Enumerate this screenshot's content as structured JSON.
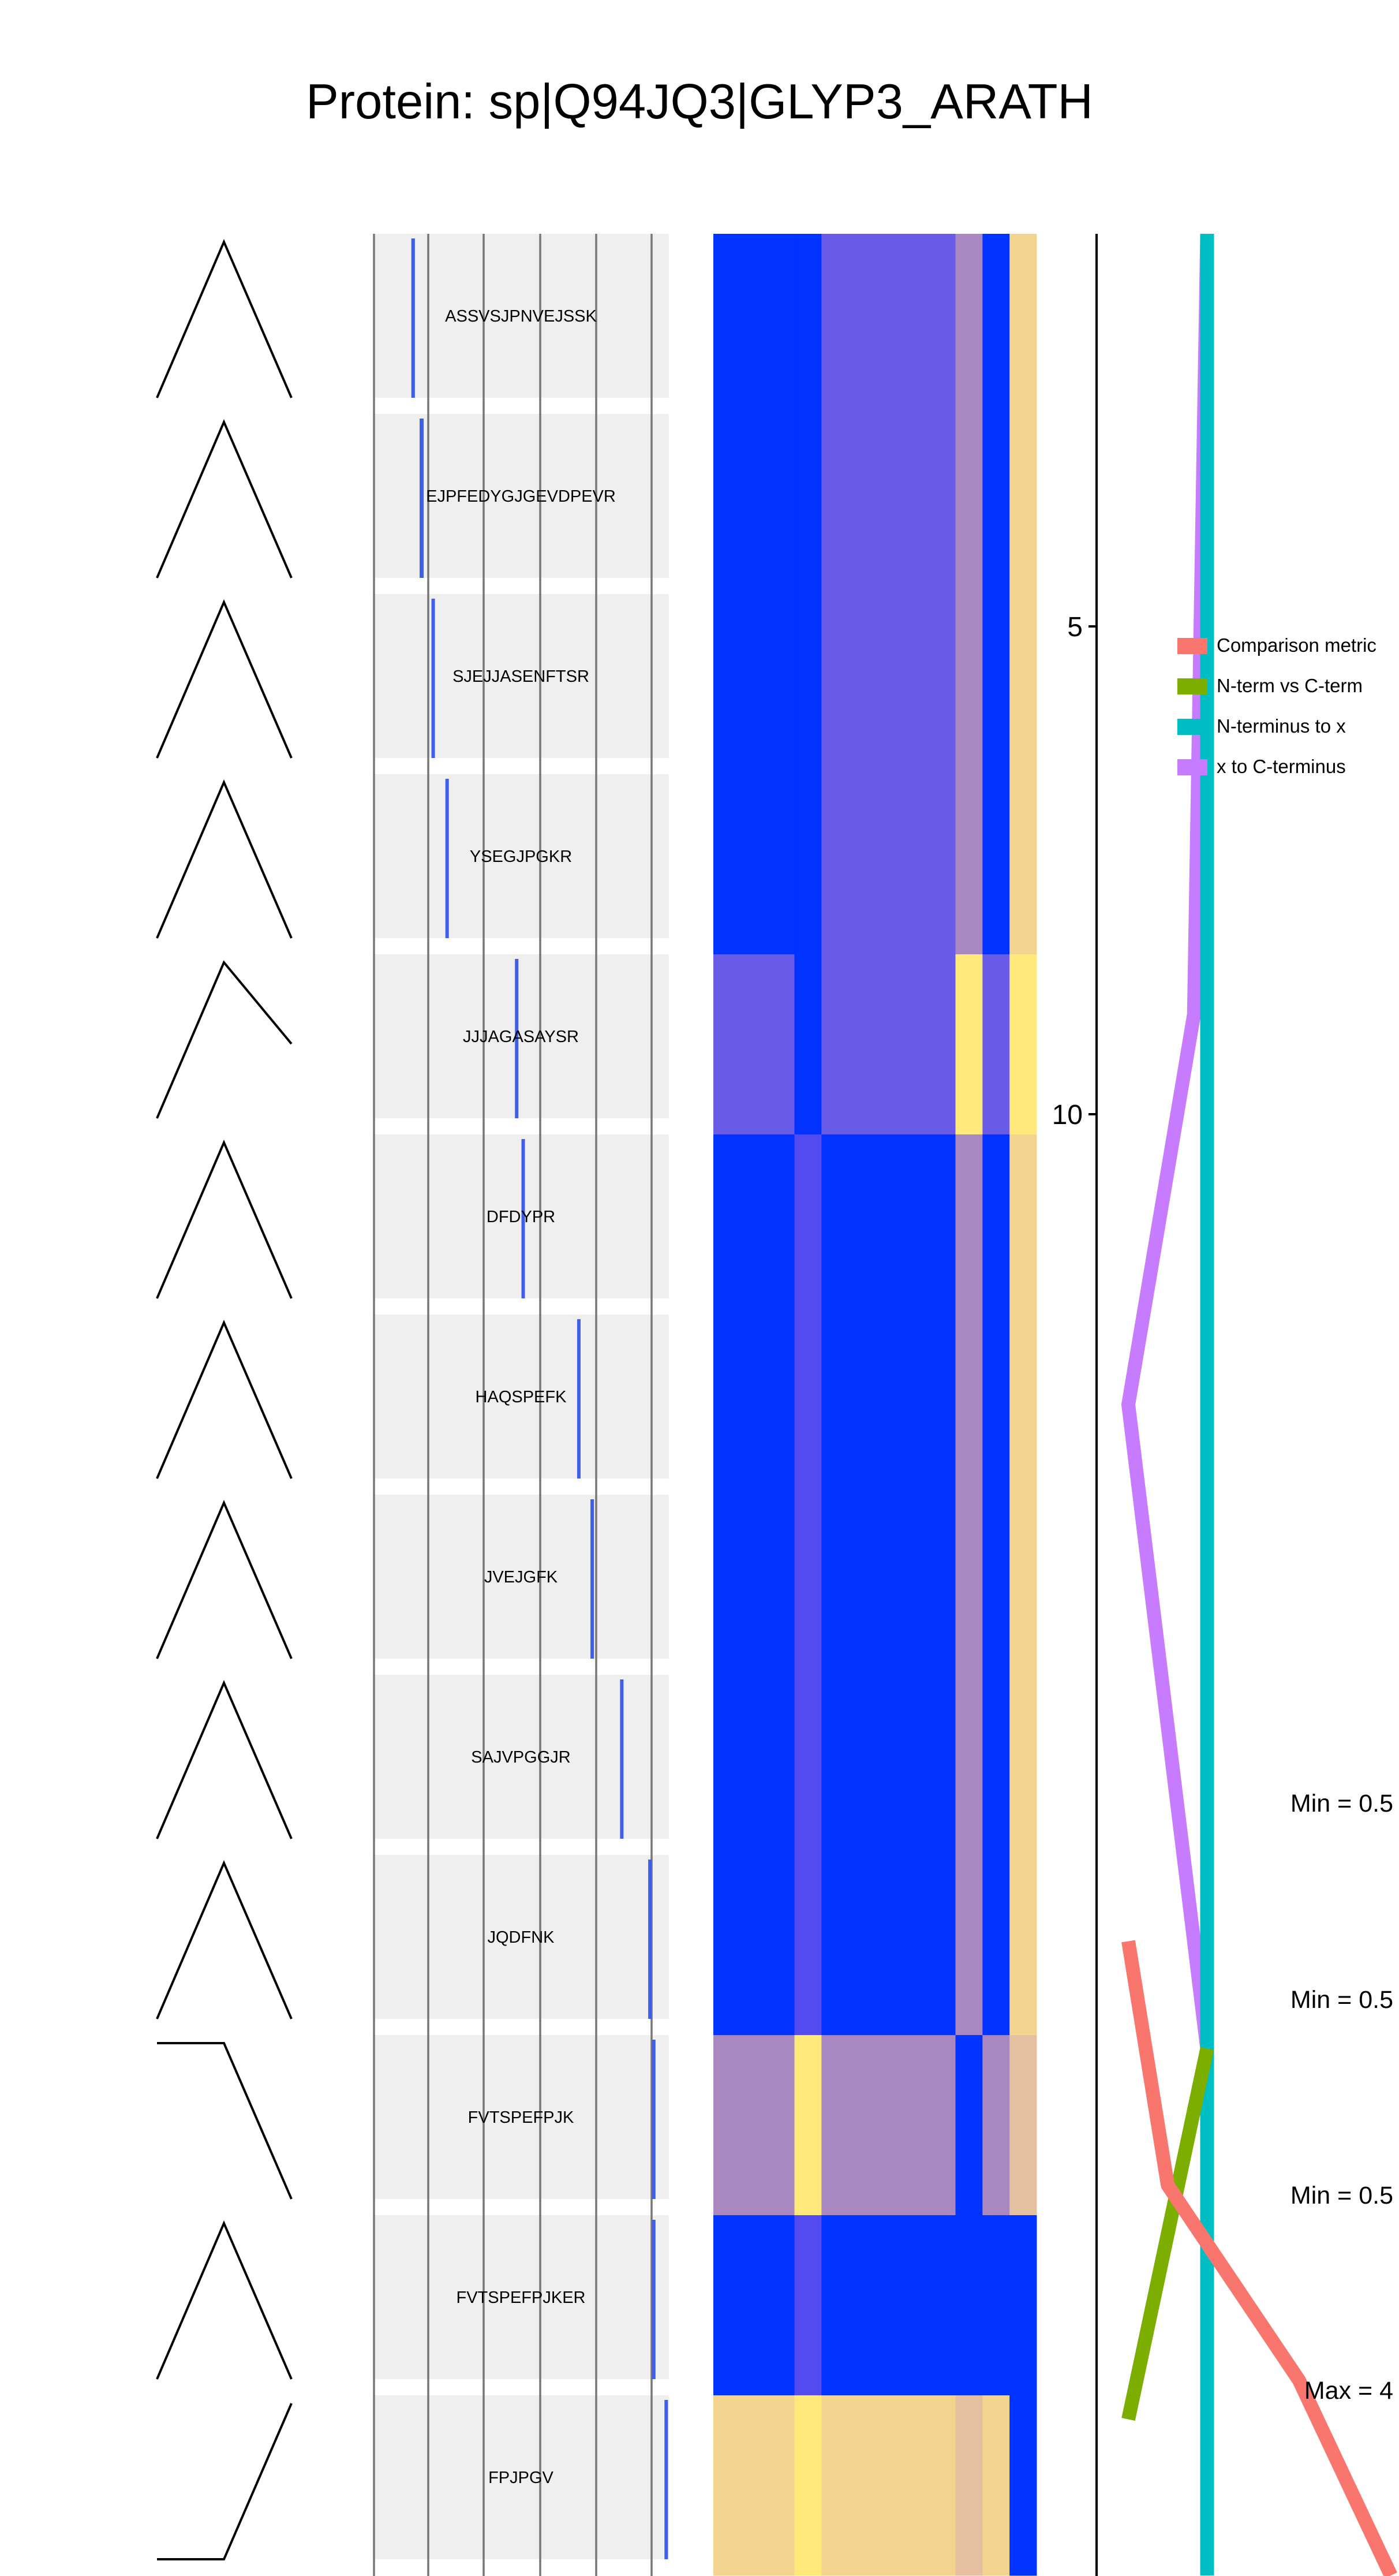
{
  "title": "Protein: sp|Q94JQ3|GLYP3_ARATH",
  "chart_data": {
    "type": "heatmap",
    "title": "Protein: sp|Q94JQ3|GLYP3_ARATH",
    "peptides": [
      {
        "seq": "ASSVSJPNVEJSSK",
        "pos": 0.13,
        "width": 0.022
      },
      {
        "seq": "EJPFEDYGJGEVDPEVR",
        "pos": 0.158,
        "width": 0.025
      },
      {
        "seq": "SJEJJASENFTSR",
        "pos": 0.198,
        "width": 0.02
      },
      {
        "seq": "YSEGJPGKR",
        "pos": 0.245,
        "width": 0.014
      },
      {
        "seq": "JJJAGASAYSR",
        "pos": 0.48,
        "width": 0.017
      },
      {
        "seq": "DFDYPR",
        "pos": 0.502,
        "width": 0.009
      },
      {
        "seq": "HAQSPEFK",
        "pos": 0.69,
        "width": 0.012
      },
      {
        "seq": "JVEJGFK",
        "pos": 0.735,
        "width": 0.012
      },
      {
        "seq": "SAJVPGGJR",
        "pos": 0.835,
        "width": 0.014
      },
      {
        "seq": "JQDFNK",
        "pos": 0.93,
        "width": 0.01
      },
      {
        "seq": "FVTSPEFPJK",
        "pos": 0.943,
        "width": 0.014
      },
      {
        "seq": "FVTSPEFPJKER",
        "pos": 0.943,
        "width": 0.02
      },
      {
        "seq": "FPJPGV",
        "pos": 0.985,
        "width": 0.009
      }
    ],
    "tree_shapes": [
      "peak",
      "peak",
      "peak",
      "peak",
      "peak-drop",
      "peak",
      "peak",
      "peak",
      "peak",
      "peak",
      "flat-down",
      "peak",
      "flat-up"
    ],
    "heatmap_colors": [
      [
        "#0033FF",
        "#6A5AE8",
        "#0033FF",
        "#0033FF",
        "#0033FF",
        "#0033FF",
        "#0033FF",
        "#0033FF",
        "#0033FF",
        "#0033FF",
        "#A988C2",
        "#0033FF",
        "#F3D48F"
      ],
      [
        "#6A5AE8",
        "#6A5AE8",
        "#6A5AE8",
        "#6A5AE8",
        "#0033FF",
        "#6A5AE8",
        "#6A5AE8",
        "#6A5AE8",
        "#6A5AE8",
        "#6A5AE8",
        "#FFE97A",
        "#6A5AE8",
        "#FFE97A"
      ],
      [
        "#0033FF",
        "#0033FF",
        "#0033FF",
        "#0033FF",
        "#544BEF",
        "#0033FF",
        "#0033FF",
        "#0033FF",
        "#0033FF",
        "#0033FF",
        "#A988C2",
        "#0033FF",
        "#F3D48F"
      ],
      [
        "#0033FF",
        "#0033FF",
        "#0033FF",
        "#0033FF",
        "#544BEF",
        "#0033FF",
        "#0033FF",
        "#0033FF",
        "#0033FF",
        "#0033FF",
        "#A988C2",
        "#0033FF",
        "#F3D48F"
      ],
      [
        "#A988C2",
        "#A988C2",
        "#A988C2",
        "#A988C2",
        "#FFE97A",
        "#A988C2",
        "#A988C2",
        "#A988C2",
        "#A988C2",
        "#A988C2",
        "#0033FF",
        "#A988C2",
        "#E4BFA0"
      ],
      [
        "#0033FF",
        "#0033FF",
        "#0033FF",
        "#0033FF",
        "#544BEF",
        "#0033FF",
        "#0033FF",
        "#0033FF",
        "#0033FF",
        "#0033FF",
        "#0033FF",
        "#0033FF",
        "#0033FF"
      ],
      [
        "#F3D48F",
        "#F3D48F",
        "#F3D48F",
        "#F3D48F",
        "#FFE97A",
        "#F3D48F",
        "#F3D48F",
        "#F3D48F",
        "#F3D48F",
        "#F3D48F",
        "#E4BFA0",
        "#F3D48F",
        "#0033FF"
      ]
    ],
    "heatmap_col_widths": [
      1,
      0.33,
      1.67,
      0.33,
      0.33,
      0.33
    ],
    "y_axis": {
      "ticks": [
        5,
        10
      ],
      "ylim": [
        1,
        13
      ]
    },
    "legend": {
      "placement": "right",
      "items": [
        {
          "name": "Comparison metric",
          "color": "#F8766D"
        },
        {
          "name": "N-term vs C-term",
          "color": "#7CAE00"
        },
        {
          "name": "N-terminus to x",
          "color": "#00BFC4"
        },
        {
          "name": "x to C-terminus",
          "color": "#C77CFF"
        }
      ]
    },
    "series": [
      {
        "name": "x to C-terminus",
        "color": "#C77CFF",
        "x": [
          0.3,
          0.25,
          0.0,
          0.3,
          0.3
        ],
        "y": [
          1,
          5,
          7,
          10.3,
          13
        ]
      },
      {
        "name": "N-terminus to x",
        "color": "#00BFC4",
        "x": [
          0.3,
          0.3,
          0.3
        ],
        "y": [
          1,
          10.3,
          13
        ]
      },
      {
        "name": "N-term vs C-term",
        "color": "#7CAE00",
        "x": [
          0.3,
          0.0
        ],
        "y": [
          10.3,
          12.2
        ]
      },
      {
        "name": "Comparison metric",
        "color": "#F8766D",
        "x": [
          0.0,
          0.15,
          0.65,
          1.0
        ],
        "y": [
          9.75,
          11.0,
          12.0,
          13.0
        ]
      }
    ],
    "annotations": [
      "Min = 0.5",
      "Min = 0.5",
      "Min = 0.5",
      "Max = 4"
    ]
  }
}
